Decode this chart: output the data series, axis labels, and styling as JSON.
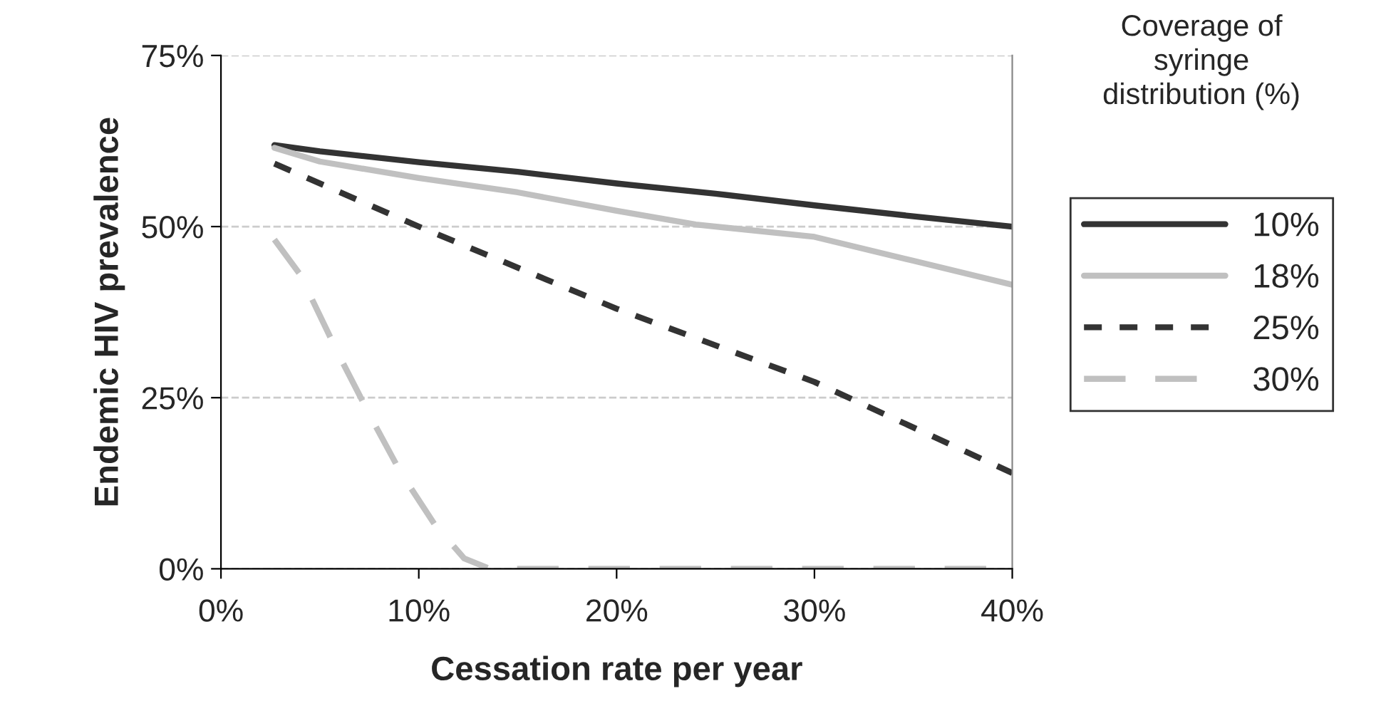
{
  "chart_data": {
    "type": "line",
    "xlabel": "Cessation rate per year",
    "ylabel": "Endemic HIV prevalence",
    "legend_title": "Coverage of\nsyringe\ndistribution (%)",
    "xlim": [
      0,
      40
    ],
    "xticks": [
      {
        "value": 0,
        "label": "0%"
      },
      {
        "value": 10,
        "label": "10%"
      },
      {
        "value": 20,
        "label": "20%"
      },
      {
        "value": 30,
        "label": "30%"
      },
      {
        "value": 40,
        "label": "40%"
      }
    ],
    "ylim": [
      0,
      75
    ],
    "yticks": [
      {
        "value": 0,
        "label": "0%"
      },
      {
        "value": 25,
        "label": "25%"
      },
      {
        "value": 50,
        "label": "50%"
      },
      {
        "value": 75,
        "label": "75%"
      }
    ],
    "grid": "y",
    "legend": "right",
    "series": [
      {
        "name": "10%",
        "color": "#333333",
        "line_style": "solid",
        "x": [
          2.7,
          5,
          10,
          15,
          20,
          25,
          30,
          35,
          40
        ],
        "values": [
          61.9,
          61.0,
          59.4,
          58.0,
          56.3,
          54.8,
          53.1,
          51.5,
          50.0
        ]
      },
      {
        "name": "18%",
        "color": "#c0c0c0",
        "line_style": "solid",
        "x": [
          2.7,
          5,
          10,
          15,
          20,
          24,
          30,
          35,
          40
        ],
        "values": [
          61.5,
          59.5,
          57.1,
          55.0,
          52.3,
          50.3,
          48.5,
          45.0,
          41.5
        ]
      },
      {
        "name": "25%",
        "color": "#333333",
        "line_style": "dashed",
        "x": [
          2.7,
          10,
          20,
          30,
          40
        ],
        "values": [
          59.2,
          50.0,
          38.0,
          27.3,
          14.0
        ]
      },
      {
        "name": "30%",
        "color": "#c0c0c0",
        "line_style": "longdash",
        "x": [
          2.7,
          4,
          6,
          7.6,
          9.1,
          10.8,
          12.3,
          13.6,
          20,
          30,
          40
        ],
        "values": [
          48.1,
          43,
          31,
          22,
          14,
          6.5,
          1.5,
          0,
          0,
          0,
          0
        ]
      }
    ]
  }
}
